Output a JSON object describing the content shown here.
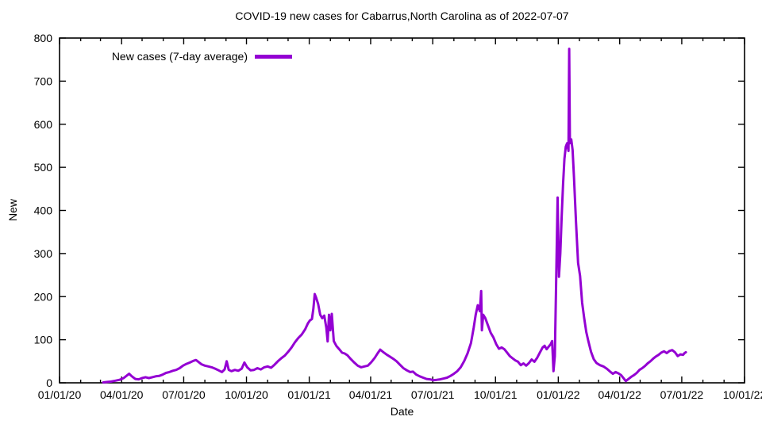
{
  "chart_data": {
    "type": "line",
    "title": "COVID-19 new cases for Cabarrus,North Carolina as of 2022-07-07",
    "xlabel": "Date",
    "ylabel": "New",
    "legend_label": "New cases (7-day average)",
    "legend_position": "top-left-inside",
    "line_color": "#9400D3",
    "background_color": "#ffffff",
    "grid": false,
    "ylim": [
      0,
      800
    ],
    "xlim": [
      "2020-01-01",
      "2022-10-01"
    ],
    "y_ticks": [
      0,
      100,
      200,
      300,
      400,
      500,
      600,
      700,
      800
    ],
    "x_ticks": [
      {
        "date": "2020-01-01",
        "label": "01/01/20"
      },
      {
        "date": "2020-04-01",
        "label": "04/01/20"
      },
      {
        "date": "2020-07-01",
        "label": "07/01/20"
      },
      {
        "date": "2020-10-01",
        "label": "10/01/20"
      },
      {
        "date": "2021-01-01",
        "label": "01/01/21"
      },
      {
        "date": "2021-04-01",
        "label": "04/01/21"
      },
      {
        "date": "2021-07-01",
        "label": "07/01/21"
      },
      {
        "date": "2021-10-01",
        "label": "10/01/21"
      },
      {
        "date": "2022-01-01",
        "label": "01/01/22"
      },
      {
        "date": "2022-04-01",
        "label": "04/01/22"
      },
      {
        "date": "2022-07-01",
        "label": "07/01/22"
      },
      {
        "date": "2022-10-01",
        "label": "10/01/22"
      }
    ],
    "series": [
      {
        "name": "New cases (7-day average)",
        "points": [
          [
            "2020-03-05",
            1
          ],
          [
            "2020-03-11",
            2
          ],
          [
            "2020-03-17",
            3
          ],
          [
            "2020-03-23",
            5
          ],
          [
            "2020-03-29",
            7
          ],
          [
            "2020-04-04",
            11
          ],
          [
            "2020-04-08",
            16
          ],
          [
            "2020-04-12",
            21
          ],
          [
            "2020-04-16",
            15
          ],
          [
            "2020-04-21",
            9
          ],
          [
            "2020-04-26",
            8
          ],
          [
            "2020-05-01",
            11
          ],
          [
            "2020-05-06",
            13
          ],
          [
            "2020-05-11",
            11
          ],
          [
            "2020-05-16",
            13
          ],
          [
            "2020-05-21",
            15
          ],
          [
            "2020-05-26",
            16
          ],
          [
            "2020-05-31",
            19
          ],
          [
            "2020-06-05",
            23
          ],
          [
            "2020-06-10",
            25
          ],
          [
            "2020-06-15",
            28
          ],
          [
            "2020-06-20",
            30
          ],
          [
            "2020-06-25",
            34
          ],
          [
            "2020-06-30",
            40
          ],
          [
            "2020-07-05",
            44
          ],
          [
            "2020-07-10",
            47
          ],
          [
            "2020-07-15",
            51
          ],
          [
            "2020-07-19",
            53
          ],
          [
            "2020-07-23",
            48
          ],
          [
            "2020-07-27",
            43
          ],
          [
            "2020-08-01",
            40
          ],
          [
            "2020-08-06",
            38
          ],
          [
            "2020-08-11",
            36
          ],
          [
            "2020-08-16",
            33
          ],
          [
            "2020-08-21",
            29
          ],
          [
            "2020-08-26",
            25
          ],
          [
            "2020-08-30",
            31
          ],
          [
            "2020-09-02",
            50
          ],
          [
            "2020-09-05",
            30
          ],
          [
            "2020-09-09",
            27
          ],
          [
            "2020-09-14",
            30
          ],
          [
            "2020-09-19",
            28
          ],
          [
            "2020-09-24",
            33
          ],
          [
            "2020-09-28",
            47
          ],
          [
            "2020-10-02",
            36
          ],
          [
            "2020-10-07",
            29
          ],
          [
            "2020-10-12",
            30
          ],
          [
            "2020-10-17",
            34
          ],
          [
            "2020-10-22",
            31
          ],
          [
            "2020-10-27",
            36
          ],
          [
            "2020-11-01",
            38
          ],
          [
            "2020-11-06",
            35
          ],
          [
            "2020-11-11",
            42
          ],
          [
            "2020-11-16",
            50
          ],
          [
            "2020-11-21",
            57
          ],
          [
            "2020-11-26",
            63
          ],
          [
            "2020-12-01",
            72
          ],
          [
            "2020-12-06",
            82
          ],
          [
            "2020-12-11",
            94
          ],
          [
            "2020-12-16",
            104
          ],
          [
            "2020-12-21",
            112
          ],
          [
            "2020-12-26",
            124
          ],
          [
            "2020-12-30",
            138
          ],
          [
            "2021-01-02",
            145
          ],
          [
            "2021-01-05",
            148
          ],
          [
            "2021-01-07",
            172
          ],
          [
            "2021-01-09",
            206
          ],
          [
            "2021-01-11",
            198
          ],
          [
            "2021-01-14",
            183
          ],
          [
            "2021-01-17",
            158
          ],
          [
            "2021-01-20",
            150
          ],
          [
            "2021-01-23",
            156
          ],
          [
            "2021-01-26",
            128
          ],
          [
            "2021-01-28",
            96
          ],
          [
            "2021-01-30",
            158
          ],
          [
            "2021-02-01",
            122
          ],
          [
            "2021-02-03",
            160
          ],
          [
            "2021-02-06",
            97
          ],
          [
            "2021-02-10",
            85
          ],
          [
            "2021-02-14",
            78
          ],
          [
            "2021-02-18",
            70
          ],
          [
            "2021-02-22",
            68
          ],
          [
            "2021-02-26",
            64
          ],
          [
            "2021-03-03",
            55
          ],
          [
            "2021-03-08",
            47
          ],
          [
            "2021-03-13",
            40
          ],
          [
            "2021-03-18",
            36
          ],
          [
            "2021-03-23",
            38
          ],
          [
            "2021-03-28",
            40
          ],
          [
            "2021-04-02",
            48
          ],
          [
            "2021-04-07",
            58
          ],
          [
            "2021-04-11",
            68
          ],
          [
            "2021-04-15",
            77
          ],
          [
            "2021-04-19",
            72
          ],
          [
            "2021-04-24",
            66
          ],
          [
            "2021-04-29",
            61
          ],
          [
            "2021-05-04",
            56
          ],
          [
            "2021-05-09",
            50
          ],
          [
            "2021-05-14",
            42
          ],
          [
            "2021-05-19",
            34
          ],
          [
            "2021-05-24",
            29
          ],
          [
            "2021-05-29",
            25
          ],
          [
            "2021-06-02",
            26
          ],
          [
            "2021-06-07",
            19
          ],
          [
            "2021-06-12",
            15
          ],
          [
            "2021-06-17",
            12
          ],
          [
            "2021-06-22",
            9
          ],
          [
            "2021-06-27",
            8
          ],
          [
            "2021-07-02",
            6
          ],
          [
            "2021-07-07",
            7
          ],
          [
            "2021-07-12",
            8
          ],
          [
            "2021-07-17",
            10
          ],
          [
            "2021-07-22",
            12
          ],
          [
            "2021-07-27",
            16
          ],
          [
            "2021-08-01",
            21
          ],
          [
            "2021-08-06",
            27
          ],
          [
            "2021-08-11",
            36
          ],
          [
            "2021-08-16",
            50
          ],
          [
            "2021-08-21",
            68
          ],
          [
            "2021-08-26",
            92
          ],
          [
            "2021-08-30",
            128
          ],
          [
            "2021-09-02",
            158
          ],
          [
            "2021-09-05",
            180
          ],
          [
            "2021-09-08",
            166
          ],
          [
            "2021-09-10",
            213
          ],
          [
            "2021-09-11",
            122
          ],
          [
            "2021-09-13",
            158
          ],
          [
            "2021-09-16",
            150
          ],
          [
            "2021-09-20",
            133
          ],
          [
            "2021-09-24",
            116
          ],
          [
            "2021-09-28",
            105
          ],
          [
            "2021-10-02",
            90
          ],
          [
            "2021-10-06",
            79
          ],
          [
            "2021-10-10",
            82
          ],
          [
            "2021-10-14",
            78
          ],
          [
            "2021-10-18",
            70
          ],
          [
            "2021-10-22",
            62
          ],
          [
            "2021-10-26",
            57
          ],
          [
            "2021-10-30",
            52
          ],
          [
            "2021-11-03",
            49
          ],
          [
            "2021-11-07",
            41
          ],
          [
            "2021-11-11",
            45
          ],
          [
            "2021-11-15",
            40
          ],
          [
            "2021-11-19",
            46
          ],
          [
            "2021-11-23",
            54
          ],
          [
            "2021-11-27",
            49
          ],
          [
            "2021-12-01",
            58
          ],
          [
            "2021-12-05",
            70
          ],
          [
            "2021-12-09",
            82
          ],
          [
            "2021-12-12",
            86
          ],
          [
            "2021-12-15",
            78
          ],
          [
            "2021-12-18",
            84
          ],
          [
            "2021-12-21",
            90
          ],
          [
            "2021-12-23",
            97
          ],
          [
            "2021-12-25",
            27
          ],
          [
            "2021-12-27",
            62
          ],
          [
            "2021-12-29",
            250
          ],
          [
            "2021-12-31",
            430
          ],
          [
            "2022-01-02",
            246
          ],
          [
            "2022-01-04",
            300
          ],
          [
            "2022-01-06",
            385
          ],
          [
            "2022-01-08",
            462
          ],
          [
            "2022-01-10",
            520
          ],
          [
            "2022-01-12",
            548
          ],
          [
            "2022-01-14",
            556
          ],
          [
            "2022-01-16",
            538
          ],
          [
            "2022-01-17",
            775
          ],
          [
            "2022-01-18",
            556
          ],
          [
            "2022-01-20",
            565
          ],
          [
            "2022-01-22",
            540
          ],
          [
            "2022-01-24",
            478
          ],
          [
            "2022-01-27",
            372
          ],
          [
            "2022-01-30",
            278
          ],
          [
            "2022-02-02",
            248
          ],
          [
            "2022-02-05",
            186
          ],
          [
            "2022-02-08",
            150
          ],
          [
            "2022-02-11",
            118
          ],
          [
            "2022-02-14",
            97
          ],
          [
            "2022-02-18",
            72
          ],
          [
            "2022-02-22",
            55
          ],
          [
            "2022-02-26",
            46
          ],
          [
            "2022-03-03",
            41
          ],
          [
            "2022-03-08",
            38
          ],
          [
            "2022-03-13",
            33
          ],
          [
            "2022-03-18",
            26
          ],
          [
            "2022-03-22",
            21
          ],
          [
            "2022-03-26",
            25
          ],
          [
            "2022-03-30",
            22
          ],
          [
            "2022-04-03",
            18
          ],
          [
            "2022-04-07",
            10
          ],
          [
            "2022-04-10",
            4
          ],
          [
            "2022-04-14",
            9
          ],
          [
            "2022-04-18",
            14
          ],
          [
            "2022-04-22",
            18
          ],
          [
            "2022-04-26",
            23
          ],
          [
            "2022-04-30",
            30
          ],
          [
            "2022-05-04",
            34
          ],
          [
            "2022-05-08",
            39
          ],
          [
            "2022-05-12",
            45
          ],
          [
            "2022-05-16",
            50
          ],
          [
            "2022-05-20",
            56
          ],
          [
            "2022-05-24",
            61
          ],
          [
            "2022-05-28",
            65
          ],
          [
            "2022-06-01",
            70
          ],
          [
            "2022-06-05",
            73
          ],
          [
            "2022-06-09",
            69
          ],
          [
            "2022-06-13",
            74
          ],
          [
            "2022-06-17",
            76
          ],
          [
            "2022-06-21",
            71
          ],
          [
            "2022-06-25",
            62
          ],
          [
            "2022-06-29",
            66
          ],
          [
            "2022-07-03",
            65
          ],
          [
            "2022-07-05",
            69
          ],
          [
            "2022-07-07",
            71
          ]
        ]
      }
    ]
  }
}
